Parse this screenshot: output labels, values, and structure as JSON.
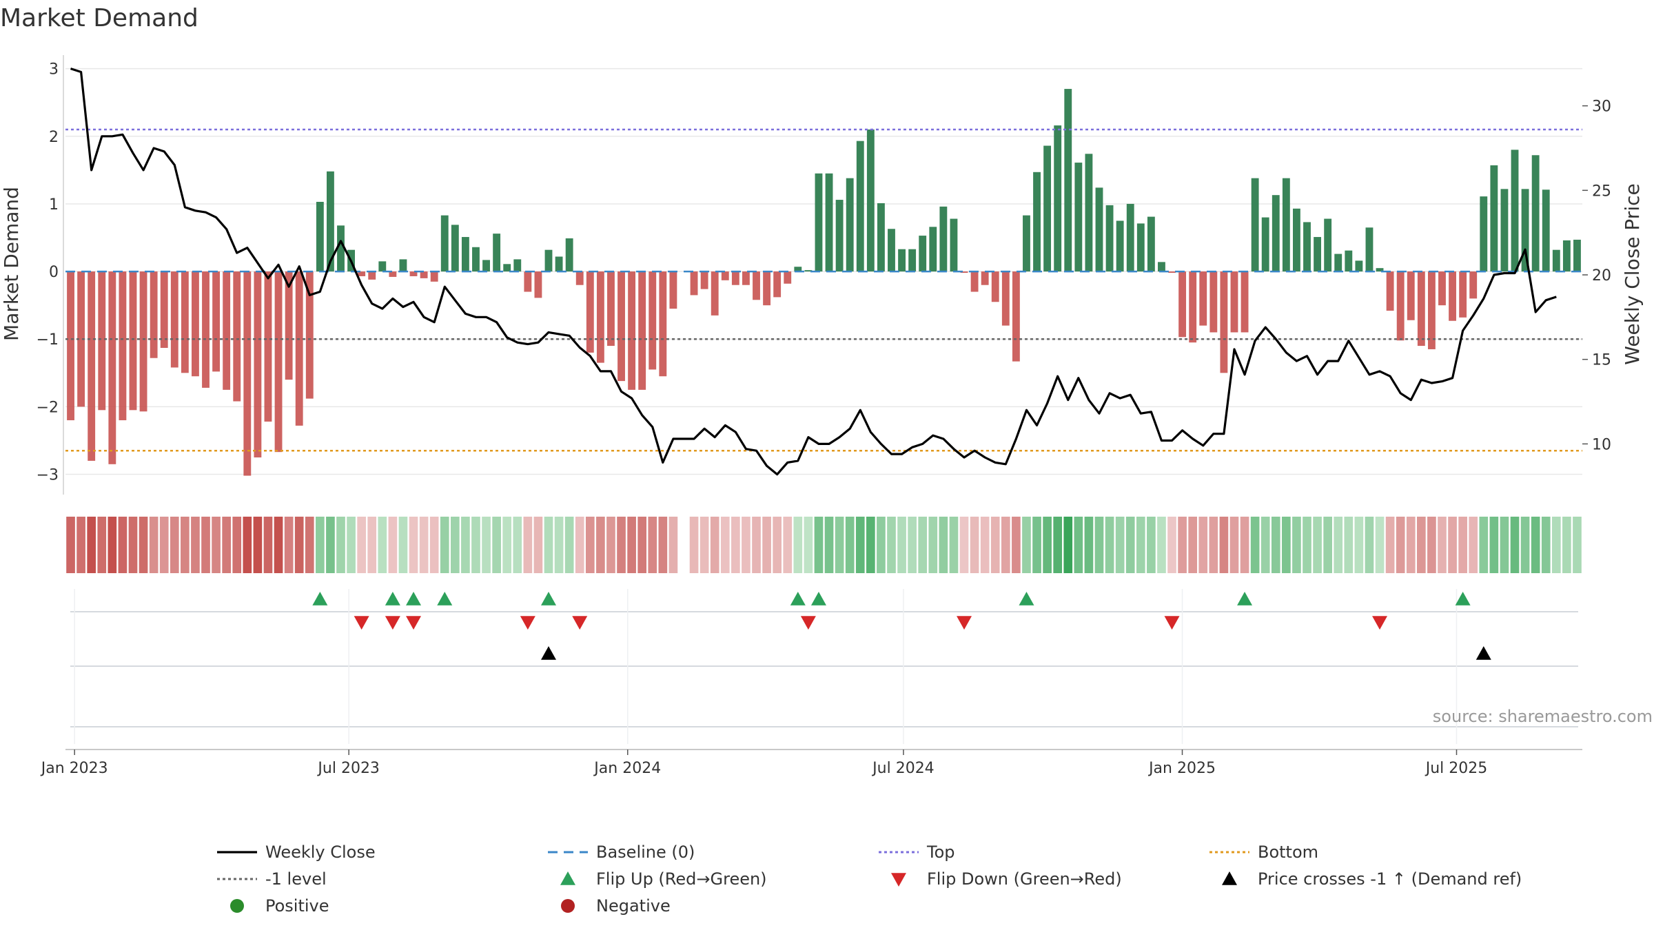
{
  "chart_data": {
    "type": "bar+line",
    "title": "Market Demand",
    "ylabel": "Market Demand",
    "y2label": "Weekly Close Price",
    "ylim": [
      -3.3,
      3.2
    ],
    "y2lim": [
      7,
      33
    ],
    "yticks": [
      -3,
      -2,
      -1,
      0,
      1,
      2,
      3
    ],
    "y2ticks": [
      10,
      15,
      20,
      25,
      30
    ],
    "x_start": "2022-12-26",
    "x_end": "2025-09-22",
    "xticks": [
      {
        "date": "2023-01-01",
        "label": "Jan 2023"
      },
      {
        "date": "2023-07-01",
        "label": "Jul 2023"
      },
      {
        "date": "2024-01-01",
        "label": "Jan 2024"
      },
      {
        "date": "2024-07-01",
        "label": "Jul 2024"
      },
      {
        "date": "2025-01-01",
        "label": "Jan 2025"
      },
      {
        "date": "2025-07-01",
        "label": "Jul 2025"
      }
    ],
    "reference_lines": {
      "top": 2.1,
      "bottom": -2.65,
      "minus_one": -1.0,
      "baseline": 0
    },
    "series": {
      "demand": [
        -2.2,
        -2.0,
        -2.8,
        -2.05,
        -2.85,
        -2.2,
        -2.05,
        -2.07,
        -1.28,
        -1.13,
        -1.42,
        -1.5,
        -1.55,
        -1.72,
        -1.48,
        -1.75,
        -1.92,
        -3.02,
        -2.75,
        -2.22,
        -2.67,
        -1.6,
        -2.28,
        -1.88,
        1.03,
        1.48,
        0.68,
        0.32,
        -0.07,
        -0.12,
        0.15,
        -0.08,
        0.18,
        -0.07,
        -0.1,
        -0.15,
        0.83,
        0.69,
        0.51,
        0.36,
        0.17,
        0.56,
        0.11,
        0.18,
        -0.3,
        -0.39,
        0.32,
        0.22,
        0.49,
        -0.2,
        -1.2,
        -1.35,
        -1.1,
        -1.62,
        -1.75,
        -1.75,
        -1.45,
        -1.55,
        -0.55,
        null,
        -0.35,
        -0.26,
        -0.65,
        -0.13,
        -0.2,
        -0.2,
        -0.42,
        -0.5,
        -0.38,
        -0.18,
        0.07,
        0.02,
        1.45,
        1.45,
        1.06,
        1.38,
        1.93,
        2.1,
        1.01,
        0.63,
        0.33,
        0.33,
        0.53,
        0.66,
        0.96,
        0.78,
        -0.02,
        -0.3,
        -0.2,
        -0.45,
        -0.8,
        -1.33,
        0.83,
        1.47,
        1.86,
        2.16,
        2.7,
        1.61,
        1.74,
        1.24,
        0.98,
        0.75,
        1.0,
        0.71,
        0.81,
        0.14,
        -0.02,
        -0.97,
        -1.05,
        -0.8,
        -0.9,
        -1.5,
        -0.9,
        -0.9,
        1.38,
        0.8,
        1.13,
        1.38,
        0.93,
        0.73,
        0.51,
        0.78,
        0.26,
        0.31,
        0.16,
        0.65,
        0.05,
        -0.58,
        -1.02,
        -0.72,
        -1.1,
        -1.15,
        -0.5,
        -0.73,
        -0.68,
        -0.4,
        1.11,
        1.57,
        1.22,
        1.8,
        1.22,
        1.72,
        1.21,
        0.32,
        0.46,
        0.47
      ],
      "close": [
        32.2,
        32.0,
        26.2,
        28.2,
        28.2,
        28.3,
        27.2,
        26.2,
        27.5,
        27.3,
        26.5,
        24.0,
        23.8,
        23.7,
        23.4,
        22.7,
        21.3,
        21.6,
        20.7,
        19.8,
        20.6,
        19.3,
        20.5,
        18.8,
        19.0,
        20.8,
        22.0,
        20.8,
        19.4,
        18.3,
        18.0,
        18.6,
        18.1,
        18.4,
        17.5,
        17.2,
        19.3,
        18.5,
        17.7,
        17.5,
        17.5,
        17.2,
        16.3,
        16.0,
        15.9,
        16.0,
        16.6,
        16.5,
        16.4,
        15.7,
        15.2,
        14.3,
        14.3,
        13.1,
        12.7,
        11.7,
        11.0,
        8.9,
        10.3,
        10.3,
        10.3,
        10.9,
        10.4,
        11.1,
        10.7,
        9.7,
        9.6,
        8.7,
        8.2,
        8.9,
        9.0,
        10.4,
        10.0,
        10.0,
        10.4,
        10.9,
        12.0,
        10.7,
        10.0,
        9.4,
        9.4,
        9.8,
        10.0,
        10.5,
        10.3,
        9.7,
        9.2,
        9.6,
        9.2,
        8.9,
        8.8,
        10.3,
        12.0,
        11.1,
        12.4,
        14.0,
        12.6,
        13.9,
        12.6,
        11.8,
        13.0,
        12.7,
        12.9,
        11.8,
        11.9,
        10.2,
        10.2,
        10.8,
        10.3,
        9.9,
        10.6,
        10.6,
        15.6,
        14.1,
        16.1,
        16.9,
        16.2,
        15.4,
        14.9,
        15.2,
        14.1,
        14.9,
        14.9,
        16.1,
        15.1,
        14.1,
        14.3,
        14.0,
        13.0,
        12.6,
        13.8,
        13.6,
        13.7,
        13.9,
        16.7,
        17.6,
        18.6,
        20.0,
        20.1,
        20.1,
        21.5,
        17.8,
        18.5,
        18.7
      ],
      "flip_up": [
        24,
        31,
        33,
        36,
        46,
        70,
        72,
        92,
        113,
        134
      ],
      "flip_down": [
        28,
        31,
        33,
        44,
        49,
        71,
        86,
        106,
        126
      ],
      "price_cross_up": [
        46,
        136
      ]
    },
    "legend": [
      {
        "label": "Weekly Close",
        "symbol": "line",
        "color": "#000000"
      },
      {
        "label": "Baseline (0)",
        "symbol": "dash",
        "color": "#3a87c8"
      },
      {
        "label": "Top",
        "symbol": "dot",
        "color": "#7b6fdc"
      },
      {
        "label": "Bottom",
        "symbol": "dot",
        "color": "#e19a1f"
      },
      {
        "label": "-1 level",
        "symbol": "dot",
        "color": "#666666"
      },
      {
        "label": "Flip Up (Red→Green)",
        "symbol": "tri-up",
        "color": "#2ca05a"
      },
      {
        "label": "Flip Down (Green→Red)",
        "symbol": "tri-down",
        "color": "#d62728"
      },
      {
        "label": "Price crosses -1 ↑ (Demand ref)",
        "symbol": "tri-up",
        "color": "#000000"
      },
      {
        "label": "Positive",
        "symbol": "circle",
        "color": "#2b8c2b"
      },
      {
        "label": "Negative",
        "symbol": "circle",
        "color": "#b22222"
      }
    ],
    "source": "source: sharemaestro.com"
  },
  "colors": {
    "positive_bar": "#2e7d4f",
    "negative_bar": "#c85250",
    "top_line": "#7b6fdc",
    "bottom_line": "#e19a1f",
    "minus_one_line": "#666666",
    "baseline": "#3a87c8",
    "grid": "#e8e8e8"
  }
}
